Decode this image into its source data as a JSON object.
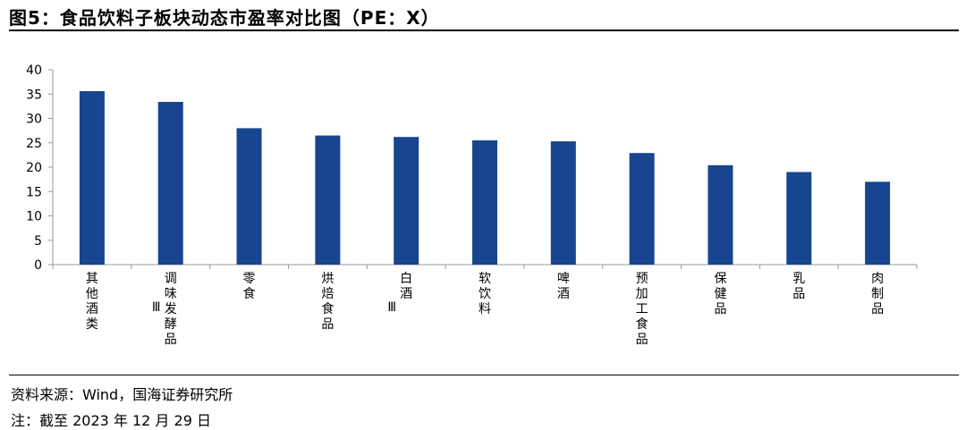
{
  "title": "图5：食品饮料子板块动态市盈率对比图（PE：X）",
  "source": "资料来源：Wind，国海证券研究所",
  "footnote": "注：截至 2023 年 12 月 29 日",
  "chart_data": {
    "type": "bar",
    "categories": [
      "其他酒类",
      "调味发酵品Ⅲ",
      "零食",
      "烘焙食品",
      "白酒Ⅲ",
      "软饮料",
      "啤酒",
      "预加工食品",
      "保健品",
      "乳品",
      "肉制品"
    ],
    "values": [
      35.6,
      33.4,
      28.0,
      26.5,
      26.2,
      25.5,
      25.3,
      22.9,
      20.4,
      19.0,
      17.0
    ],
    "yticks": [
      "0",
      "5",
      "10",
      "15",
      "20",
      "25",
      "30",
      "35",
      "40"
    ],
    "ylim": [
      0,
      40
    ],
    "color": "#17458f",
    "grid": false,
    "legend": false
  }
}
